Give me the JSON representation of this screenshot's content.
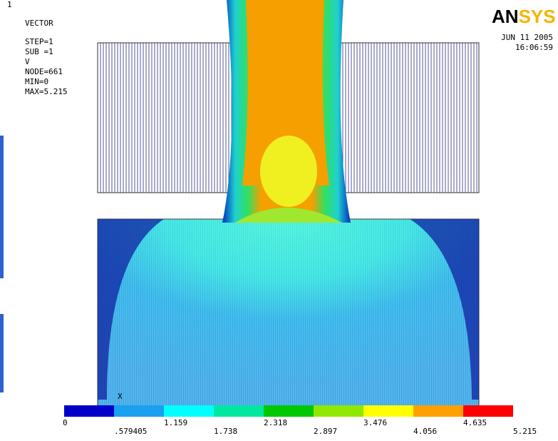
{
  "header": {
    "window": "1",
    "plot": "VECTOR",
    "step": "STEP=1",
    "sub": "SUB =1",
    "variable": "V",
    "node": "NODE=661",
    "min": "MIN=0",
    "max": "MAX=5.215"
  },
  "logo": {
    "an": "AN",
    "sys": "SYS"
  },
  "date": "JUN 11 2005",
  "time": "16:06:59",
  "axis_label": "X",
  "legend": {
    "upper_labels": [
      "1.159",
      "2.318",
      "3.476",
      "4.635"
    ],
    "lower_labels": [
      "0",
      ".579405",
      "1.738",
      "2.897",
      "4.056",
      "5.215"
    ]
  }
}
